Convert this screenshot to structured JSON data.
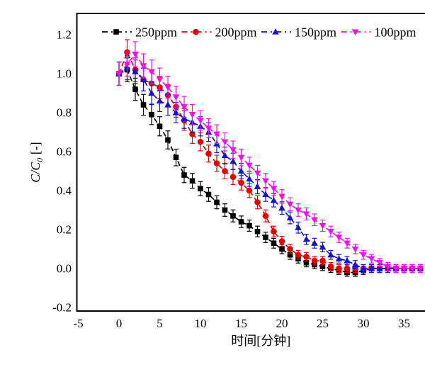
{
  "chart_data": {
    "type": "line",
    "title": "",
    "xlabel": "时间[分钟]",
    "ylabel": {
      "prefix": "C/C",
      "sub": "0",
      "suffix": " [-]"
    },
    "x_tick_labels": [
      "-5",
      "0",
      "5",
      "10",
      "15",
      "20",
      "25",
      "30",
      "35",
      "40"
    ],
    "x_tick_values": [
      -5,
      0,
      5,
      10,
      15,
      20,
      25,
      30,
      35,
      40
    ],
    "y_tick_labels": [
      "-0.2",
      "0.0",
      "0.2",
      "0.4",
      "0.6",
      "0.8",
      "1.0",
      "1.2"
    ],
    "y_tick_values": [
      -0.2,
      0.0,
      0.2,
      0.4,
      0.6,
      0.8,
      1.0,
      1.2
    ],
    "xlim": [
      -5.2,
      40.0
    ],
    "ylim": [
      -0.218,
      1.309
    ],
    "grid": false,
    "legend_position": "top-inside",
    "line_style": "dashed",
    "x": [
      0,
      1,
      2,
      3,
      4,
      5,
      6,
      7,
      8,
      9,
      10,
      11,
      12,
      13,
      14,
      15,
      16,
      17,
      18,
      19,
      20,
      21,
      22,
      23,
      24,
      25,
      26,
      27,
      28,
      29,
      30,
      31,
      32,
      33,
      34,
      35,
      36,
      37
    ],
    "series": [
      {
        "name": "250ppm",
        "color": "#000000",
        "marker": "square",
        "values": [
          1.0,
          1.02,
          0.92,
          0.84,
          0.79,
          0.73,
          0.66,
          0.57,
          0.48,
          0.45,
          0.41,
          0.38,
          0.34,
          0.3,
          0.27,
          0.24,
          0.22,
          0.19,
          0.16,
          0.13,
          0.1,
          0.07,
          0.05,
          0.03,
          0.02,
          0.01,
          0.0,
          -0.01,
          -0.02,
          -0.02,
          -0.01,
          0.0,
          0.0,
          0.0,
          0.0,
          0.0,
          0.0,
          0.0
        ]
      },
      {
        "name": "200ppm",
        "color": "#e60000",
        "marker": "circle",
        "values": [
          1.0,
          1.11,
          1.02,
          0.97,
          0.95,
          0.93,
          0.89,
          0.83,
          0.76,
          0.69,
          0.65,
          0.59,
          0.54,
          0.5,
          0.47,
          0.44,
          0.4,
          0.34,
          0.27,
          0.19,
          0.14,
          0.1,
          0.07,
          0.06,
          0.04,
          0.04,
          0.01,
          0.0,
          0.0,
          0.0,
          0.0,
          0.0,
          0.0,
          0.0,
          0.0,
          0.0,
          0.0,
          0.0
        ]
      },
      {
        "name": "150ppm",
        "color": "#1414cc",
        "marker": "triangle-up",
        "values": [
          1.0,
          1.03,
          1.01,
          0.97,
          0.9,
          0.86,
          0.84,
          0.8,
          0.77,
          0.75,
          0.73,
          0.7,
          0.64,
          0.58,
          0.55,
          0.5,
          0.46,
          0.42,
          0.38,
          0.35,
          0.31,
          0.26,
          0.21,
          0.15,
          0.13,
          0.11,
          0.07,
          0.05,
          0.04,
          0.02,
          0.0,
          0.0,
          0.0,
          0.0,
          0.0,
          0.0,
          0.0,
          0.0
        ]
      },
      {
        "name": "100ppm",
        "color": "#ee11ee",
        "marker": "triangle-down",
        "values": [
          1.0,
          1.05,
          1.1,
          1.04,
          1.01,
          0.97,
          0.93,
          0.88,
          0.83,
          0.79,
          0.76,
          0.72,
          0.69,
          0.65,
          0.61,
          0.57,
          0.53,
          0.49,
          0.45,
          0.41,
          0.37,
          0.33,
          0.3,
          0.28,
          0.25,
          0.22,
          0.19,
          0.16,
          0.13,
          0.1,
          0.07,
          0.05,
          0.03,
          0.01,
          0.0,
          0.0,
          0.0,
          0.0
        ]
      }
    ],
    "error_bar": {
      "base": 0.02,
      "scale": 0.04,
      "min": 0.018,
      "max": 0.065
    }
  }
}
